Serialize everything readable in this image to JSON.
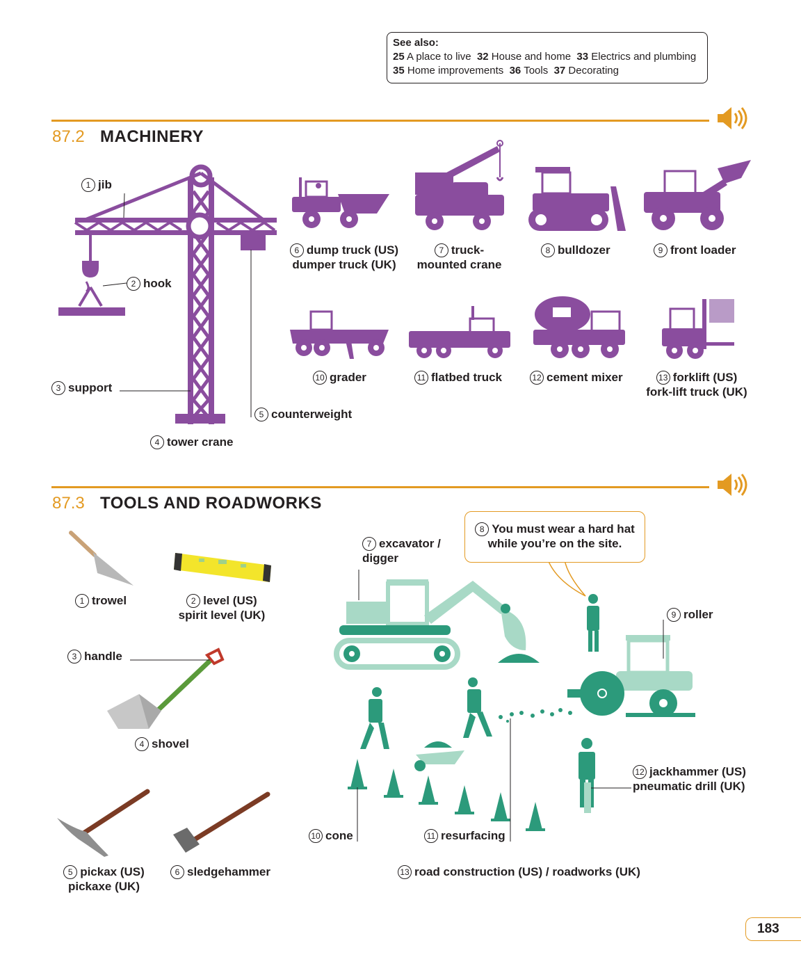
{
  "see_also": {
    "heading": "See also:",
    "line1": [
      {
        "num": "25",
        "text": "A place to live"
      },
      {
        "num": "32",
        "text": "House and home"
      },
      {
        "num": "33",
        "text": "Electrics and plumbing"
      }
    ],
    "line2": [
      {
        "num": "35",
        "text": "Home improvements"
      },
      {
        "num": "36",
        "text": "Tools"
      },
      {
        "num": "37",
        "text": "Decorating"
      }
    ]
  },
  "machinery": {
    "section_num": "87.2",
    "title": "MACHINERY",
    "items": {
      "jib": {
        "n": "1",
        "label": "jib"
      },
      "hook": {
        "n": "2",
        "label": "hook"
      },
      "support": {
        "n": "3",
        "label": "support"
      },
      "tower_crane": {
        "n": "4",
        "label": "tower crane"
      },
      "counterweight": {
        "n": "5",
        "label": "counterweight"
      },
      "dump_truck": {
        "n": "6",
        "label": "dump truck (US)",
        "label2": "dumper truck (UK)"
      },
      "truck_crane": {
        "n": "7",
        "label": "truck-",
        "label2": "mounted crane"
      },
      "bulldozer": {
        "n": "8",
        "label": "bulldozer"
      },
      "front_loader": {
        "n": "9",
        "label": "front loader"
      },
      "grader": {
        "n": "10",
        "label": "grader"
      },
      "flatbed": {
        "n": "11",
        "label": "flatbed truck"
      },
      "cement_mixer": {
        "n": "12",
        "label": "cement mixer"
      },
      "forklift": {
        "n": "13",
        "label": "forklift (US)",
        "label2": "fork-lift truck (UK)"
      }
    }
  },
  "tools": {
    "section_num": "87.3",
    "title": "TOOLS AND ROADWORKS",
    "items": {
      "trowel": {
        "n": "1",
        "label": "trowel"
      },
      "level": {
        "n": "2",
        "label": "level (US)",
        "label2": "spirit level (UK)"
      },
      "handle": {
        "n": "3",
        "label": "handle"
      },
      "shovel": {
        "n": "4",
        "label": "shovel"
      },
      "pickax": {
        "n": "5",
        "label": "pickax (US)",
        "label2": "pickaxe (UK)"
      },
      "sledgehammer": {
        "n": "6",
        "label": "sledgehammer"
      },
      "excavator": {
        "n": "7",
        "label": "excavator /",
        "label2": "digger"
      },
      "hard_hat": {
        "n": "8",
        "label": "You must wear a hard hat",
        "label2": "while you’re on the site."
      },
      "roller": {
        "n": "9",
        "label": "roller"
      },
      "cone": {
        "n": "10",
        "label": "cone"
      },
      "resurfacing": {
        "n": "11",
        "label": "resurfacing"
      },
      "jackhammer": {
        "n": "12",
        "label": "jackhammer (US)",
        "label2": "pneumatic drill (UK)"
      },
      "road_construction": {
        "n": "13",
        "label": "road construction (US) / roadworks (UK)"
      }
    }
  },
  "page_number": "183",
  "colors": {
    "accent": "#e39a22",
    "machinery": "#8a4d9e",
    "roadworks_dark": "#2c9a7b",
    "roadworks_light": "#a8d9c6"
  },
  "icons": [
    "speaker-icon"
  ]
}
